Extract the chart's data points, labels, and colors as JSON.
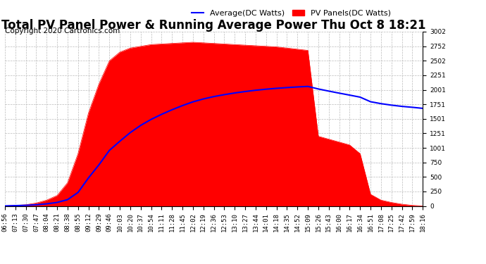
{
  "title": "Total PV Panel Power & Running Average Power Thu Oct 8 18:21",
  "copyright": "Copyright 2020 Cartronics.com",
  "legend_avg": "Average(DC Watts)",
  "legend_pv": "PV Panels(DC Watts)",
  "avg_color": "blue",
  "pv_color": "red",
  "ylim": [
    0.0,
    3001.8
  ],
  "yticks": [
    0.0,
    250.1,
    500.3,
    750.4,
    1000.6,
    1250.7,
    1500.9,
    1751.0,
    2001.2,
    2251.3,
    2501.5,
    2751.6,
    3001.8
  ],
  "background_color": "white",
  "plot_bg_color": "white",
  "title_fontsize": 12,
  "copyright_fontsize": 7.5,
  "grid_color": "#bbbbbb",
  "tick_label_fontsize": 6.5,
  "x_labels": [
    "06:56",
    "07:13",
    "07:30",
    "07:47",
    "08:04",
    "08:21",
    "08:38",
    "08:55",
    "09:12",
    "09:29",
    "09:46",
    "10:03",
    "10:20",
    "10:37",
    "10:54",
    "11:11",
    "11:28",
    "11:45",
    "12:02",
    "12:19",
    "12:36",
    "12:53",
    "13:10",
    "13:27",
    "13:44",
    "14:01",
    "14:18",
    "14:35",
    "14:52",
    "15:09",
    "15:26",
    "15:43",
    "16:00",
    "16:17",
    "16:34",
    "16:51",
    "17:08",
    "17:25",
    "17:42",
    "17:59",
    "18:16"
  ],
  "pv_values": [
    0,
    10,
    20,
    50,
    100,
    180,
    400,
    900,
    1600,
    2100,
    2500,
    2650,
    2720,
    2750,
    2780,
    2790,
    2800,
    2810,
    2820,
    2810,
    2800,
    2790,
    2780,
    2770,
    2760,
    2750,
    2740,
    2720,
    2700,
    2680,
    1200,
    1150,
    1100,
    1050,
    900,
    200,
    100,
    60,
    30,
    10,
    0
  ],
  "running_avg": [
    0,
    5,
    10,
    20,
    36,
    60,
    108,
    232,
    482,
    707,
    956,
    1114,
    1263,
    1388,
    1491,
    1578,
    1657,
    1729,
    1793,
    1843,
    1884,
    1917,
    1946,
    1971,
    1993,
    2011,
    2026,
    2039,
    2050,
    2059,
    2015,
    1978,
    1943,
    1909,
    1874,
    1795,
    1762,
    1736,
    1715,
    1699,
    1681
  ]
}
